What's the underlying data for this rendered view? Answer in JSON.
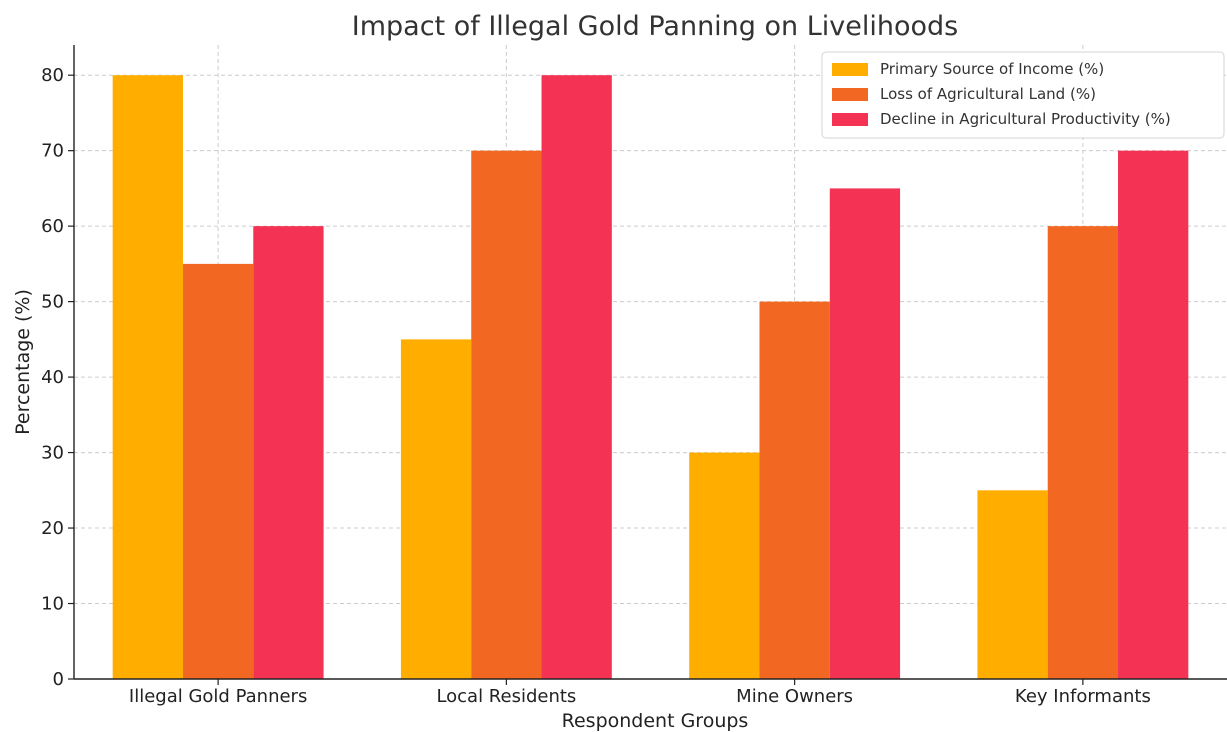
{
  "chart_data": {
    "type": "bar",
    "title": "Impact of Illegal Gold Panning on Livelihoods",
    "xlabel": "Respondent Groups",
    "ylabel": "Percentage (%)",
    "ylim": [
      0,
      84
    ],
    "yticks": [
      0,
      10,
      20,
      30,
      40,
      50,
      60,
      70,
      80
    ],
    "grid": true,
    "legend_position": "top-right",
    "categories": [
      "Illegal Gold Panners",
      "Local Residents",
      "Mine Owners",
      "Key Informants"
    ],
    "series": [
      {
        "name": "Primary Source of Income (%)",
        "color": "#FFAE00",
        "values": [
          80,
          45,
          30,
          25
        ]
      },
      {
        "name": "Loss of Agricultural Land (%)",
        "color": "#F26822",
        "values": [
          55,
          70,
          50,
          60
        ]
      },
      {
        "name": "Decline in Agricultural Productivity (%)",
        "color": "#F43254",
        "values": [
          60,
          80,
          65,
          70
        ]
      }
    ]
  }
}
